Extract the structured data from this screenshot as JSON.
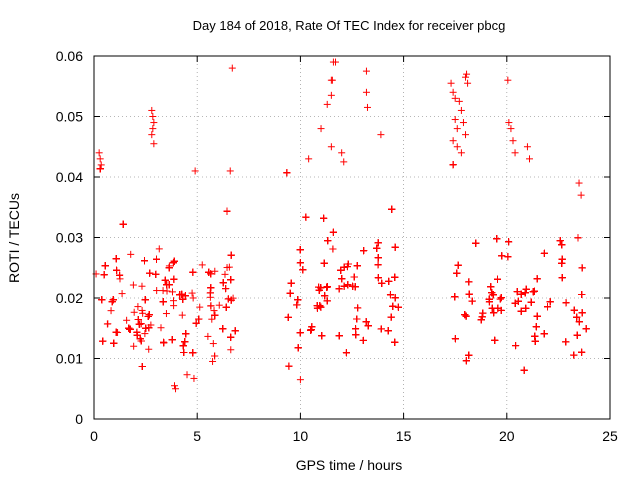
{
  "chart_data": {
    "type": "scatter",
    "title": "Day 184 of 2018, Rate Of TEC Index for receiver pbcg",
    "xlabel": "GPS time / hours",
    "ylabel": "ROTI / TECUs",
    "xlim": [
      0,
      25
    ],
    "ylim": [
      0,
      0.06
    ],
    "xticks": [
      0,
      5,
      10,
      15,
      20,
      25
    ],
    "xtick_labels": [
      "0",
      "5",
      "10",
      "15",
      "20",
      "25"
    ],
    "yticks": [
      0,
      0.01,
      0.02,
      0.03,
      0.04,
      0.05,
      0.06
    ],
    "ytick_labels": [
      "0",
      "0.01",
      "0.02",
      "0.03",
      "0.04",
      "0.05",
      "0.06"
    ],
    "grid": true,
    "marker": "+",
    "series": [
      {
        "name": "ROTI",
        "color": "#ff0000",
        "segments": [
          {
            "start": 0.0,
            "end": 6.9,
            "median": 0.017,
            "spread": 0.008
          },
          {
            "start": 9.1,
            "end": 14.8,
            "median": 0.019,
            "spread": 0.009
          },
          {
            "start": 17.1,
            "end": 23.9,
            "median": 0.018,
            "spread": 0.008
          }
        ],
        "outliers": [
          {
            "x": 0.25,
            "y": 0.044
          },
          {
            "x": 0.3,
            "y": 0.043
          },
          {
            "x": 0.35,
            "y": 0.042
          },
          {
            "x": 2.8,
            "y": 0.051
          },
          {
            "x": 2.85,
            "y": 0.05
          },
          {
            "x": 2.9,
            "y": 0.049
          },
          {
            "x": 2.85,
            "y": 0.048
          },
          {
            "x": 2.8,
            "y": 0.047
          },
          {
            "x": 2.9,
            "y": 0.0455
          },
          {
            "x": 4.9,
            "y": 0.041
          },
          {
            "x": 6.7,
            "y": 0.058
          },
          {
            "x": 6.6,
            "y": 0.041
          },
          {
            "x": 11.0,
            "y": 0.048
          },
          {
            "x": 11.3,
            "y": 0.052
          },
          {
            "x": 11.5,
            "y": 0.0535
          },
          {
            "x": 11.5,
            "y": 0.056
          },
          {
            "x": 11.55,
            "y": 0.056
          },
          {
            "x": 11.6,
            "y": 0.059
          },
          {
            "x": 11.7,
            "y": 0.059
          },
          {
            "x": 11.5,
            "y": 0.045
          },
          {
            "x": 12.0,
            "y": 0.044
          },
          {
            "x": 13.2,
            "y": 0.0575
          },
          {
            "x": 13.2,
            "y": 0.054
          },
          {
            "x": 13.25,
            "y": 0.0515
          },
          {
            "x": 13.9,
            "y": 0.047
          },
          {
            "x": 12.1,
            "y": 0.0425
          },
          {
            "x": 10.4,
            "y": 0.043
          },
          {
            "x": 17.3,
            "y": 0.0555
          },
          {
            "x": 17.4,
            "y": 0.054
          },
          {
            "x": 17.5,
            "y": 0.053
          },
          {
            "x": 17.7,
            "y": 0.0525
          },
          {
            "x": 17.8,
            "y": 0.051
          },
          {
            "x": 17.5,
            "y": 0.0495
          },
          {
            "x": 17.6,
            "y": 0.048
          },
          {
            "x": 17.9,
            "y": 0.049
          },
          {
            "x": 18.0,
            "y": 0.047
          },
          {
            "x": 18.0,
            "y": 0.0565
          },
          {
            "x": 18.05,
            "y": 0.057
          },
          {
            "x": 18.1,
            "y": 0.0555
          },
          {
            "x": 17.4,
            "y": 0.046
          },
          {
            "x": 17.6,
            "y": 0.045
          },
          {
            "x": 17.8,
            "y": 0.044
          },
          {
            "x": 20.05,
            "y": 0.056
          },
          {
            "x": 20.1,
            "y": 0.049
          },
          {
            "x": 20.2,
            "y": 0.048
          },
          {
            "x": 20.3,
            "y": 0.046
          },
          {
            "x": 20.4,
            "y": 0.044
          },
          {
            "x": 21.0,
            "y": 0.045
          },
          {
            "x": 21.1,
            "y": 0.043
          },
          {
            "x": 23.5,
            "y": 0.039
          },
          {
            "x": 23.6,
            "y": 0.037
          },
          {
            "x": 3.9,
            "y": 0.0055
          },
          {
            "x": 3.95,
            "y": 0.005
          },
          {
            "x": 10.0,
            "y": 0.0065
          }
        ]
      }
    ]
  }
}
